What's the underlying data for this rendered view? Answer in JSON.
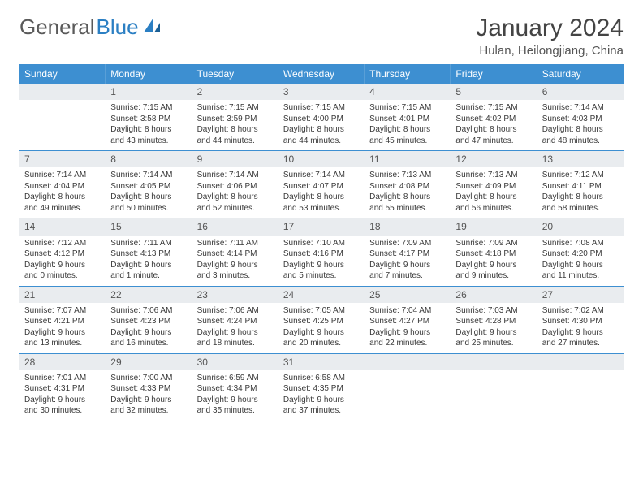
{
  "logo": {
    "text1": "General",
    "text2": "Blue"
  },
  "title": "January 2024",
  "location": "Hulan, Heilongjiang, China",
  "weekdays": [
    "Sunday",
    "Monday",
    "Tuesday",
    "Wednesday",
    "Thursday",
    "Friday",
    "Saturday"
  ],
  "colors": {
    "header_bg": "#3d8fd1",
    "daynum_bg": "#e9ecef",
    "text": "#3a3a3a",
    "border": "#3d8fd1"
  },
  "weeks": [
    [
      {
        "num": "",
        "sunrise": "",
        "sunset": "",
        "dl1": "",
        "dl2": ""
      },
      {
        "num": "1",
        "sunrise": "Sunrise: 7:15 AM",
        "sunset": "Sunset: 3:58 PM",
        "dl1": "Daylight: 8 hours",
        "dl2": "and 43 minutes."
      },
      {
        "num": "2",
        "sunrise": "Sunrise: 7:15 AM",
        "sunset": "Sunset: 3:59 PM",
        "dl1": "Daylight: 8 hours",
        "dl2": "and 44 minutes."
      },
      {
        "num": "3",
        "sunrise": "Sunrise: 7:15 AM",
        "sunset": "Sunset: 4:00 PM",
        "dl1": "Daylight: 8 hours",
        "dl2": "and 44 minutes."
      },
      {
        "num": "4",
        "sunrise": "Sunrise: 7:15 AM",
        "sunset": "Sunset: 4:01 PM",
        "dl1": "Daylight: 8 hours",
        "dl2": "and 45 minutes."
      },
      {
        "num": "5",
        "sunrise": "Sunrise: 7:15 AM",
        "sunset": "Sunset: 4:02 PM",
        "dl1": "Daylight: 8 hours",
        "dl2": "and 47 minutes."
      },
      {
        "num": "6",
        "sunrise": "Sunrise: 7:14 AM",
        "sunset": "Sunset: 4:03 PM",
        "dl1": "Daylight: 8 hours",
        "dl2": "and 48 minutes."
      }
    ],
    [
      {
        "num": "7",
        "sunrise": "Sunrise: 7:14 AM",
        "sunset": "Sunset: 4:04 PM",
        "dl1": "Daylight: 8 hours",
        "dl2": "and 49 minutes."
      },
      {
        "num": "8",
        "sunrise": "Sunrise: 7:14 AM",
        "sunset": "Sunset: 4:05 PM",
        "dl1": "Daylight: 8 hours",
        "dl2": "and 50 minutes."
      },
      {
        "num": "9",
        "sunrise": "Sunrise: 7:14 AM",
        "sunset": "Sunset: 4:06 PM",
        "dl1": "Daylight: 8 hours",
        "dl2": "and 52 minutes."
      },
      {
        "num": "10",
        "sunrise": "Sunrise: 7:14 AM",
        "sunset": "Sunset: 4:07 PM",
        "dl1": "Daylight: 8 hours",
        "dl2": "and 53 minutes."
      },
      {
        "num": "11",
        "sunrise": "Sunrise: 7:13 AM",
        "sunset": "Sunset: 4:08 PM",
        "dl1": "Daylight: 8 hours",
        "dl2": "and 55 minutes."
      },
      {
        "num": "12",
        "sunrise": "Sunrise: 7:13 AM",
        "sunset": "Sunset: 4:09 PM",
        "dl1": "Daylight: 8 hours",
        "dl2": "and 56 minutes."
      },
      {
        "num": "13",
        "sunrise": "Sunrise: 7:12 AM",
        "sunset": "Sunset: 4:11 PM",
        "dl1": "Daylight: 8 hours",
        "dl2": "and 58 minutes."
      }
    ],
    [
      {
        "num": "14",
        "sunrise": "Sunrise: 7:12 AM",
        "sunset": "Sunset: 4:12 PM",
        "dl1": "Daylight: 9 hours",
        "dl2": "and 0 minutes."
      },
      {
        "num": "15",
        "sunrise": "Sunrise: 7:11 AM",
        "sunset": "Sunset: 4:13 PM",
        "dl1": "Daylight: 9 hours",
        "dl2": "and 1 minute."
      },
      {
        "num": "16",
        "sunrise": "Sunrise: 7:11 AM",
        "sunset": "Sunset: 4:14 PM",
        "dl1": "Daylight: 9 hours",
        "dl2": "and 3 minutes."
      },
      {
        "num": "17",
        "sunrise": "Sunrise: 7:10 AM",
        "sunset": "Sunset: 4:16 PM",
        "dl1": "Daylight: 9 hours",
        "dl2": "and 5 minutes."
      },
      {
        "num": "18",
        "sunrise": "Sunrise: 7:09 AM",
        "sunset": "Sunset: 4:17 PM",
        "dl1": "Daylight: 9 hours",
        "dl2": "and 7 minutes."
      },
      {
        "num": "19",
        "sunrise": "Sunrise: 7:09 AM",
        "sunset": "Sunset: 4:18 PM",
        "dl1": "Daylight: 9 hours",
        "dl2": "and 9 minutes."
      },
      {
        "num": "20",
        "sunrise": "Sunrise: 7:08 AM",
        "sunset": "Sunset: 4:20 PM",
        "dl1": "Daylight: 9 hours",
        "dl2": "and 11 minutes."
      }
    ],
    [
      {
        "num": "21",
        "sunrise": "Sunrise: 7:07 AM",
        "sunset": "Sunset: 4:21 PM",
        "dl1": "Daylight: 9 hours",
        "dl2": "and 13 minutes."
      },
      {
        "num": "22",
        "sunrise": "Sunrise: 7:06 AM",
        "sunset": "Sunset: 4:23 PM",
        "dl1": "Daylight: 9 hours",
        "dl2": "and 16 minutes."
      },
      {
        "num": "23",
        "sunrise": "Sunrise: 7:06 AM",
        "sunset": "Sunset: 4:24 PM",
        "dl1": "Daylight: 9 hours",
        "dl2": "and 18 minutes."
      },
      {
        "num": "24",
        "sunrise": "Sunrise: 7:05 AM",
        "sunset": "Sunset: 4:25 PM",
        "dl1": "Daylight: 9 hours",
        "dl2": "and 20 minutes."
      },
      {
        "num": "25",
        "sunrise": "Sunrise: 7:04 AM",
        "sunset": "Sunset: 4:27 PM",
        "dl1": "Daylight: 9 hours",
        "dl2": "and 22 minutes."
      },
      {
        "num": "26",
        "sunrise": "Sunrise: 7:03 AM",
        "sunset": "Sunset: 4:28 PM",
        "dl1": "Daylight: 9 hours",
        "dl2": "and 25 minutes."
      },
      {
        "num": "27",
        "sunrise": "Sunrise: 7:02 AM",
        "sunset": "Sunset: 4:30 PM",
        "dl1": "Daylight: 9 hours",
        "dl2": "and 27 minutes."
      }
    ],
    [
      {
        "num": "28",
        "sunrise": "Sunrise: 7:01 AM",
        "sunset": "Sunset: 4:31 PM",
        "dl1": "Daylight: 9 hours",
        "dl2": "and 30 minutes."
      },
      {
        "num": "29",
        "sunrise": "Sunrise: 7:00 AM",
        "sunset": "Sunset: 4:33 PM",
        "dl1": "Daylight: 9 hours",
        "dl2": "and 32 minutes."
      },
      {
        "num": "30",
        "sunrise": "Sunrise: 6:59 AM",
        "sunset": "Sunset: 4:34 PM",
        "dl1": "Daylight: 9 hours",
        "dl2": "and 35 minutes."
      },
      {
        "num": "31",
        "sunrise": "Sunrise: 6:58 AM",
        "sunset": "Sunset: 4:35 PM",
        "dl1": "Daylight: 9 hours",
        "dl2": "and 37 minutes."
      },
      {
        "num": "",
        "sunrise": "",
        "sunset": "",
        "dl1": "",
        "dl2": ""
      },
      {
        "num": "",
        "sunrise": "",
        "sunset": "",
        "dl1": "",
        "dl2": ""
      },
      {
        "num": "",
        "sunrise": "",
        "sunset": "",
        "dl1": "",
        "dl2": ""
      }
    ]
  ]
}
